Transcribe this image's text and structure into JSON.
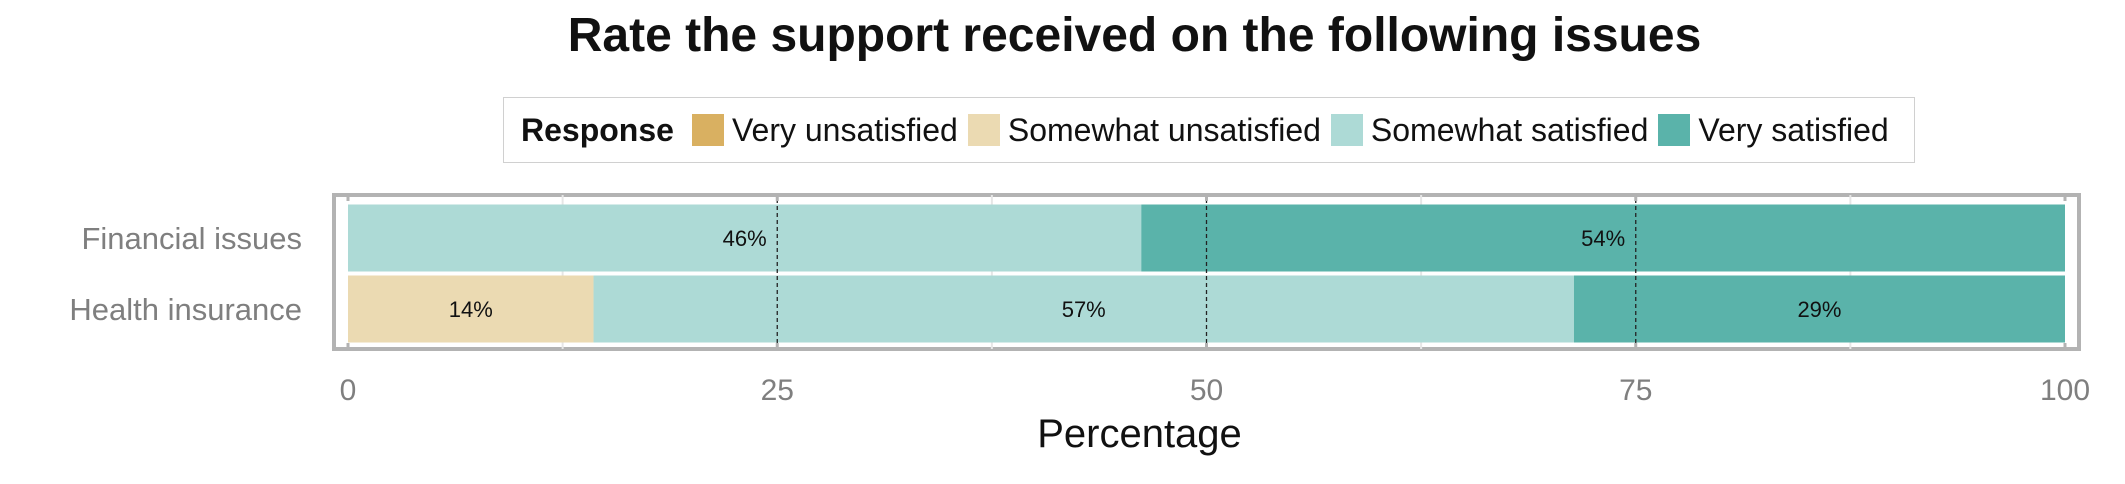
{
  "chart_data": {
    "type": "bar",
    "orientation": "horizontal",
    "stacked": true,
    "title": "Rate the support received on the following issues",
    "xlabel": "Percentage",
    "ylabel": "",
    "xlim": [
      0,
      100
    ],
    "xticks": [
      0,
      25,
      50,
      75,
      100
    ],
    "grid": true,
    "legend": {
      "title": "Response",
      "placement": "top"
    },
    "categories": [
      "Financial issues",
      "Health insurance"
    ],
    "series": [
      {
        "name": "Very unsatisfied",
        "color": "#D9B061",
        "values": [
          0,
          0
        ]
      },
      {
        "name": "Somewhat unsatisfied",
        "color": "#EBDAB2",
        "values": [
          0,
          14.3
        ]
      },
      {
        "name": "Somewhat satisfied",
        "color": "#ADDAD6",
        "values": [
          46.2,
          57.1
        ]
      },
      {
        "name": "Very satisfied",
        "color": "#5AB3AA",
        "values": [
          53.8,
          28.6
        ]
      }
    ],
    "data_labels": [
      [
        "",
        "",
        "46%",
        "54%"
      ],
      [
        "",
        "14%",
        "57%",
        "29%"
      ]
    ]
  }
}
